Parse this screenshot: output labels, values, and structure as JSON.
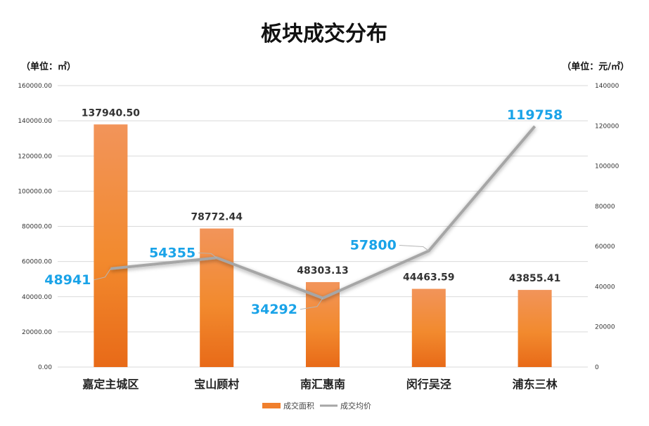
{
  "chart_data": {
    "type": "bar",
    "title": "板块成交分布",
    "left_axis_unit": "（单位：㎡）",
    "right_axis_unit": "（单位：元/㎡）",
    "categories": [
      "嘉定主城区",
      "宝山顾村",
      "南汇惠南",
      "闵行吴泾",
      "浦东三林"
    ],
    "series": [
      {
        "name": "成交面积",
        "type": "bar",
        "axis": "left",
        "values": [
          137940.5,
          78772.44,
          48303.13,
          44463.59,
          43855.41
        ],
        "labels": [
          "137940.50",
          "78772.44",
          "48303.13",
          "44463.59",
          "43855.41"
        ],
        "color": "#f07f2c"
      },
      {
        "name": "成交均价",
        "type": "line",
        "axis": "right",
        "values": [
          48941,
          54355,
          34292,
          57800,
          119758
        ],
        "labels": [
          "48941",
          "54355",
          "34292",
          "57800",
          "119758"
        ],
        "color": "#a6a6a6",
        "label_color": "#1aa3e8"
      }
    ],
    "ylim_left": [
      0,
      160000
    ],
    "ylim_right": [
      0,
      140000
    ],
    "yticks_left": [
      "0.00",
      "20000.00",
      "40000.00",
      "60000.00",
      "80000.00",
      "100000.00",
      "120000.00",
      "140000.00",
      "160000.00"
    ],
    "yticks_right": [
      "0",
      "20000",
      "40000",
      "60000",
      "80000",
      "100000",
      "120000",
      "140000"
    ],
    "grid": true,
    "legend_position": "bottom"
  }
}
